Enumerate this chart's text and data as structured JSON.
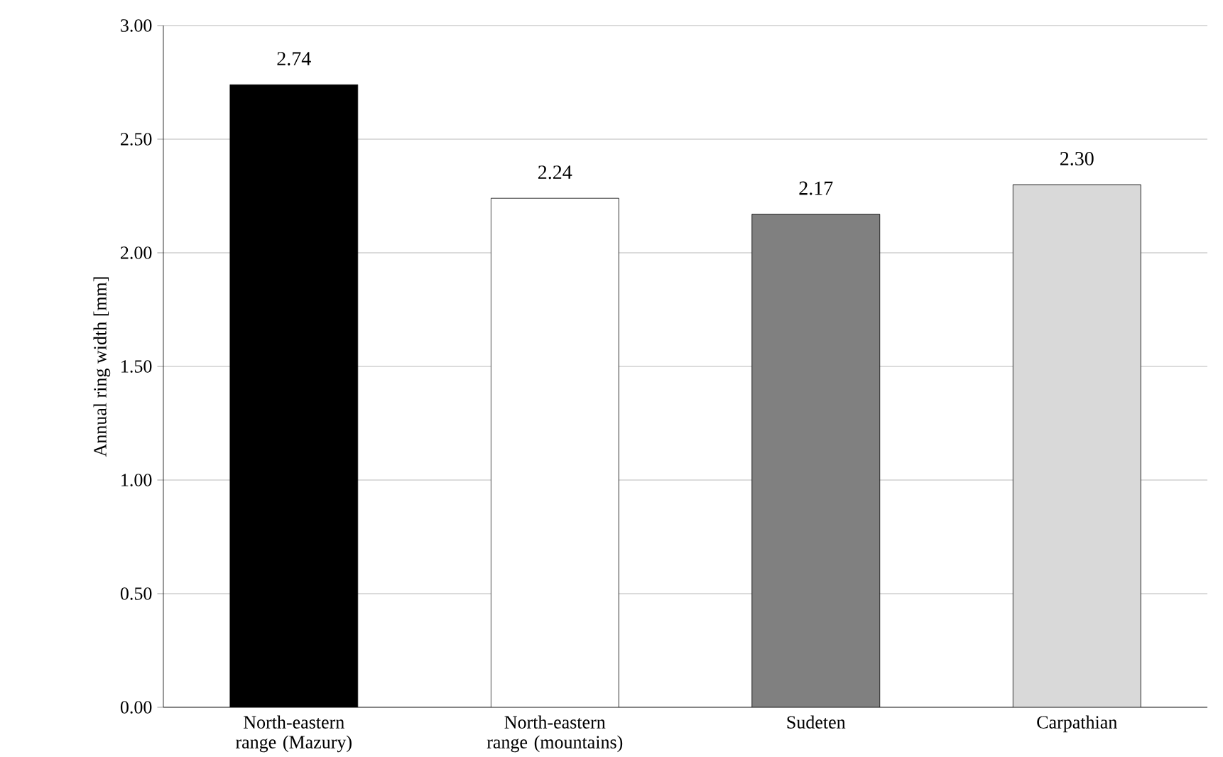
{
  "chart_data": {
    "type": "bar",
    "ylabel": "Annual ring width [mm]",
    "categories": [
      "North-eastern range (Mazury)",
      "North-eastern range (mountains)",
      "Sudeten",
      "Carpathian"
    ],
    "values": [
      2.74,
      2.24,
      2.17,
      2.3
    ],
    "colors": [
      "#000000",
      "#ffffff",
      "#808080",
      "#d9d9d9"
    ],
    "value_labels": [
      "2.74",
      "2.24",
      "2.17",
      "2.30"
    ],
    "ylim": [
      0,
      3
    ],
    "yticks": [
      {
        "value": 0,
        "label": "0.00"
      },
      {
        "value": 0.5,
        "label": "0.50"
      },
      {
        "value": 1,
        "label": "1.00"
      },
      {
        "value": 1.5,
        "label": "1.50"
      },
      {
        "value": 2,
        "label": "2.00"
      },
      {
        "value": 2.5,
        "label": "2.50"
      },
      {
        "value": 3,
        "label": "3.00"
      }
    ],
    "grid": "y"
  }
}
